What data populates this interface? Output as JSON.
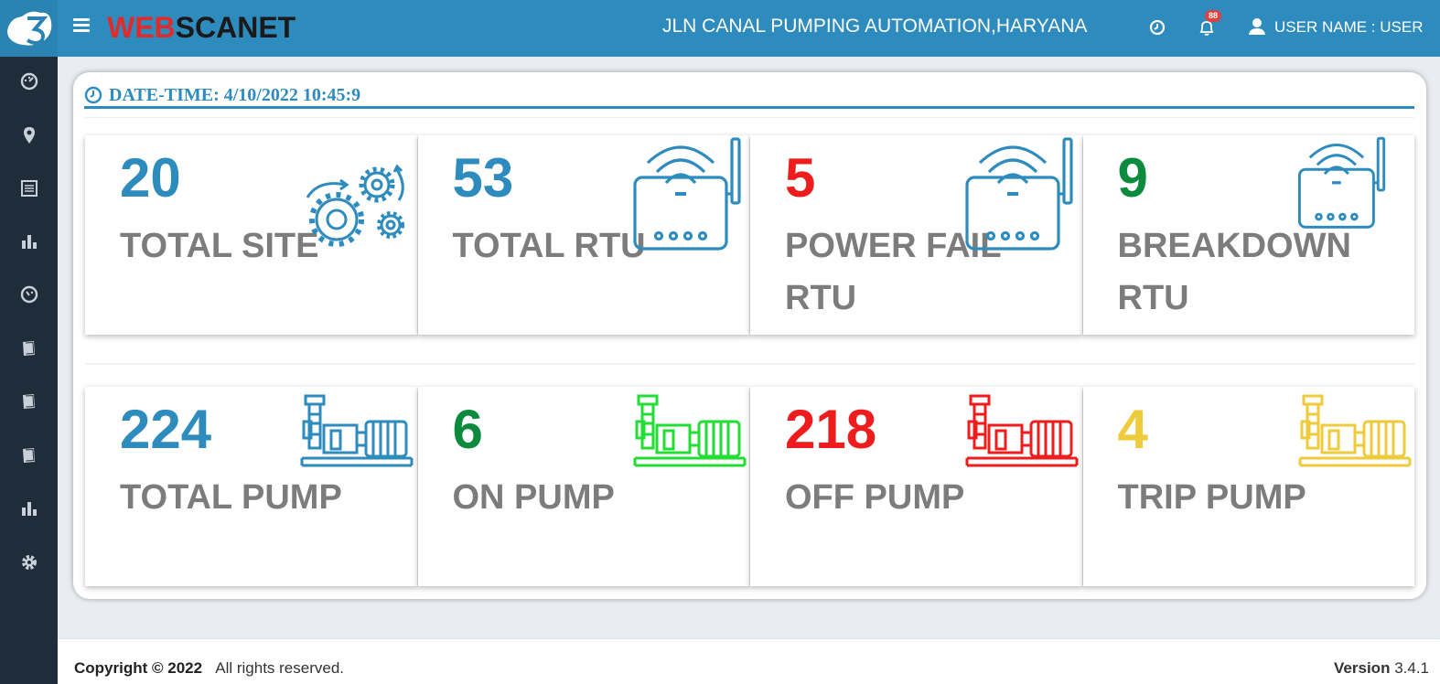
{
  "header": {
    "logo_part1": "WEB",
    "logo_part2": "SCANET",
    "title": "JLN CANAL PUMPING AUTOMATION,HARYANA",
    "notification_count": "88",
    "user_label": "USER NAME : USER"
  },
  "sidebar": {
    "items": [
      {
        "icon": "dashboard-icon"
      },
      {
        "icon": "map-marker-icon"
      },
      {
        "icon": "list-icon"
      },
      {
        "icon": "bar-chart-icon"
      },
      {
        "icon": "gauge-icon"
      },
      {
        "icon": "book-icon"
      },
      {
        "icon": "book-icon"
      },
      {
        "icon": "book-icon"
      },
      {
        "icon": "bar-chart-icon"
      },
      {
        "icon": "gear-icon"
      }
    ]
  },
  "datetime": {
    "label": "DATE-TIME: 4/10/2022 10:45:9"
  },
  "rtu_tiles": [
    {
      "value": "20",
      "label": "TOTAL SITE",
      "color": "#2e8bbe",
      "icon": "gears-icon"
    },
    {
      "value": "53",
      "label": "TOTAL RTU",
      "color": "#2e8bbe",
      "icon": "router-icon"
    },
    {
      "value": "5",
      "label": "POWER FAIL RTU",
      "color": "#ee1c1c",
      "icon": "router-icon"
    },
    {
      "value": "9",
      "label": "BREAKDOWN RTU",
      "color": "#0c8a3e",
      "icon": "router-icon"
    }
  ],
  "pump_tiles": [
    {
      "value": "224",
      "label": "TOTAL PUMP",
      "color": "#2e8bbe",
      "icon_color": "#2e8bbe",
      "icon": "pump-icon"
    },
    {
      "value": "6",
      "label": "ON PUMP",
      "color": "#0c8a3e",
      "icon_color": "#22dd33",
      "icon": "pump-icon"
    },
    {
      "value": "218",
      "label": "OFF PUMP",
      "color": "#ee1c1c",
      "icon_color": "#ee1c1c",
      "icon": "pump-icon"
    },
    {
      "value": "4",
      "label": "TRIP PUMP",
      "color": "#efcb3c",
      "icon_color": "#efcb3c",
      "icon": "pump-icon"
    }
  ],
  "footer": {
    "copyright_bold": "Copyright © 2022",
    "copyright_rest": "All rights reserved.",
    "version_label": "Version",
    "version_number": "3.4.1"
  }
}
